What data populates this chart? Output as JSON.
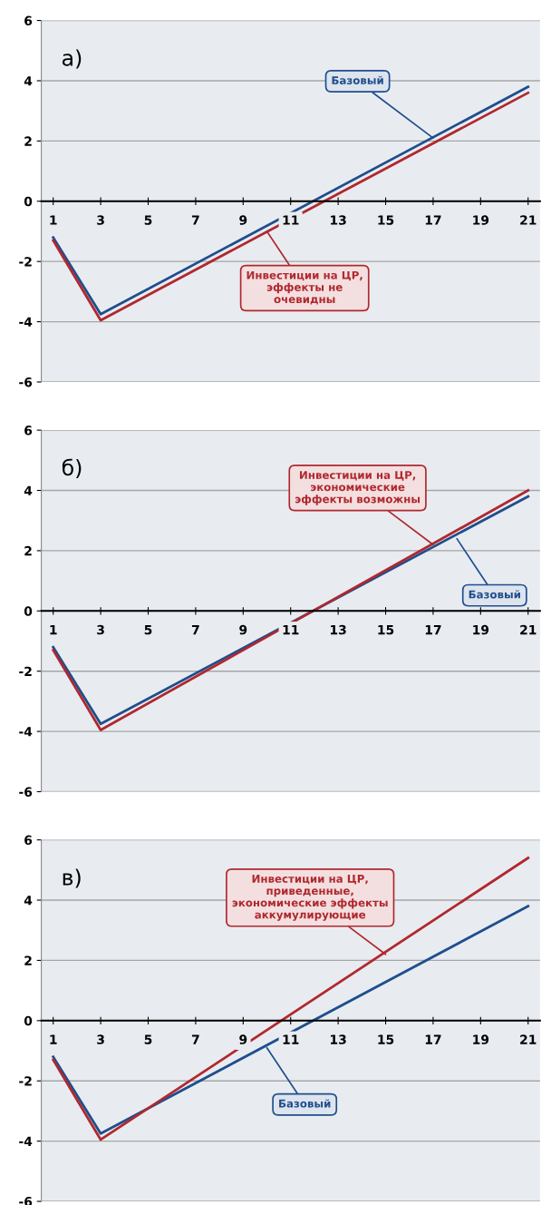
{
  "chart_data": [
    {
      "type": "line",
      "title": "а)",
      "x": [
        1,
        3,
        21
      ],
      "xlim": [
        0.5,
        21.5
      ],
      "xticks": [
        1,
        3,
        5,
        7,
        9,
        11,
        13,
        15,
        17,
        19,
        21
      ],
      "ylim": [
        -6,
        6
      ],
      "yticks": [
        -6,
        -4,
        -2,
        0,
        2,
        4,
        6
      ],
      "grid": "y",
      "series": [
        {
          "color": "#1f4e8c",
          "values": [
            -1.2,
            -3.75,
            3.8
          ]
        },
        {
          "color": "#b0282e",
          "values": [
            -1.3,
            -3.95,
            3.6
          ]
        }
      ],
      "annotations": [
        {
          "text": "Базовый",
          "x": 17,
          "y": 2.1
        },
        {
          "text": "Инвестиции на ЦР,\nэффекты не\nочевидны",
          "x": 10,
          "y": -1.0
        }
      ]
    },
    {
      "type": "line",
      "title": "б)",
      "x": [
        1,
        3,
        21
      ],
      "xlim": [
        0.5,
        21.5
      ],
      "xticks": [
        1,
        3,
        5,
        7,
        9,
        11,
        13,
        15,
        17,
        19,
        21
      ],
      "ylim": [
        -6,
        6
      ],
      "yticks": [
        -6,
        -4,
        -2,
        0,
        2,
        4,
        6
      ],
      "grid": "y",
      "series": [
        {
          "color": "#1f4e8c",
          "values": [
            -1.2,
            -3.75,
            3.8
          ]
        },
        {
          "color": "#b0282e",
          "values": [
            -1.3,
            -3.95,
            4.0
          ]
        }
      ],
      "annotations": [
        {
          "text": "Инвестиции на ЦР,\nэкономические\nэффекты возможны",
          "x": 17,
          "y": 2.2
        },
        {
          "text": "Базовый",
          "x": 18,
          "y": 2.4
        }
      ]
    },
    {
      "type": "line",
      "title": "в)",
      "x": [
        1,
        3,
        21
      ],
      "xlim": [
        0.5,
        21.5
      ],
      "xticks": [
        1,
        3,
        5,
        7,
        9,
        11,
        13,
        15,
        17,
        19,
        21
      ],
      "ylim": [
        -6,
        6
      ],
      "yticks": [
        -6,
        -4,
        -2,
        0,
        2,
        4,
        6
      ],
      "grid": "y",
      "series": [
        {
          "color": "#1f4e8c",
          "values": [
            -1.2,
            -3.75,
            3.8
          ]
        },
        {
          "color": "#b0282e",
          "values": [
            -1.3,
            -3.95,
            5.4
          ]
        }
      ],
      "annotations": [
        {
          "text": "Инвестиции на ЦР,\nприведенные,\nэкономические эффекты\nаккумулирующие",
          "x": 15,
          "y": 2.2
        },
        {
          "text": "Базовый",
          "x": 10,
          "y": -0.9
        }
      ]
    }
  ]
}
